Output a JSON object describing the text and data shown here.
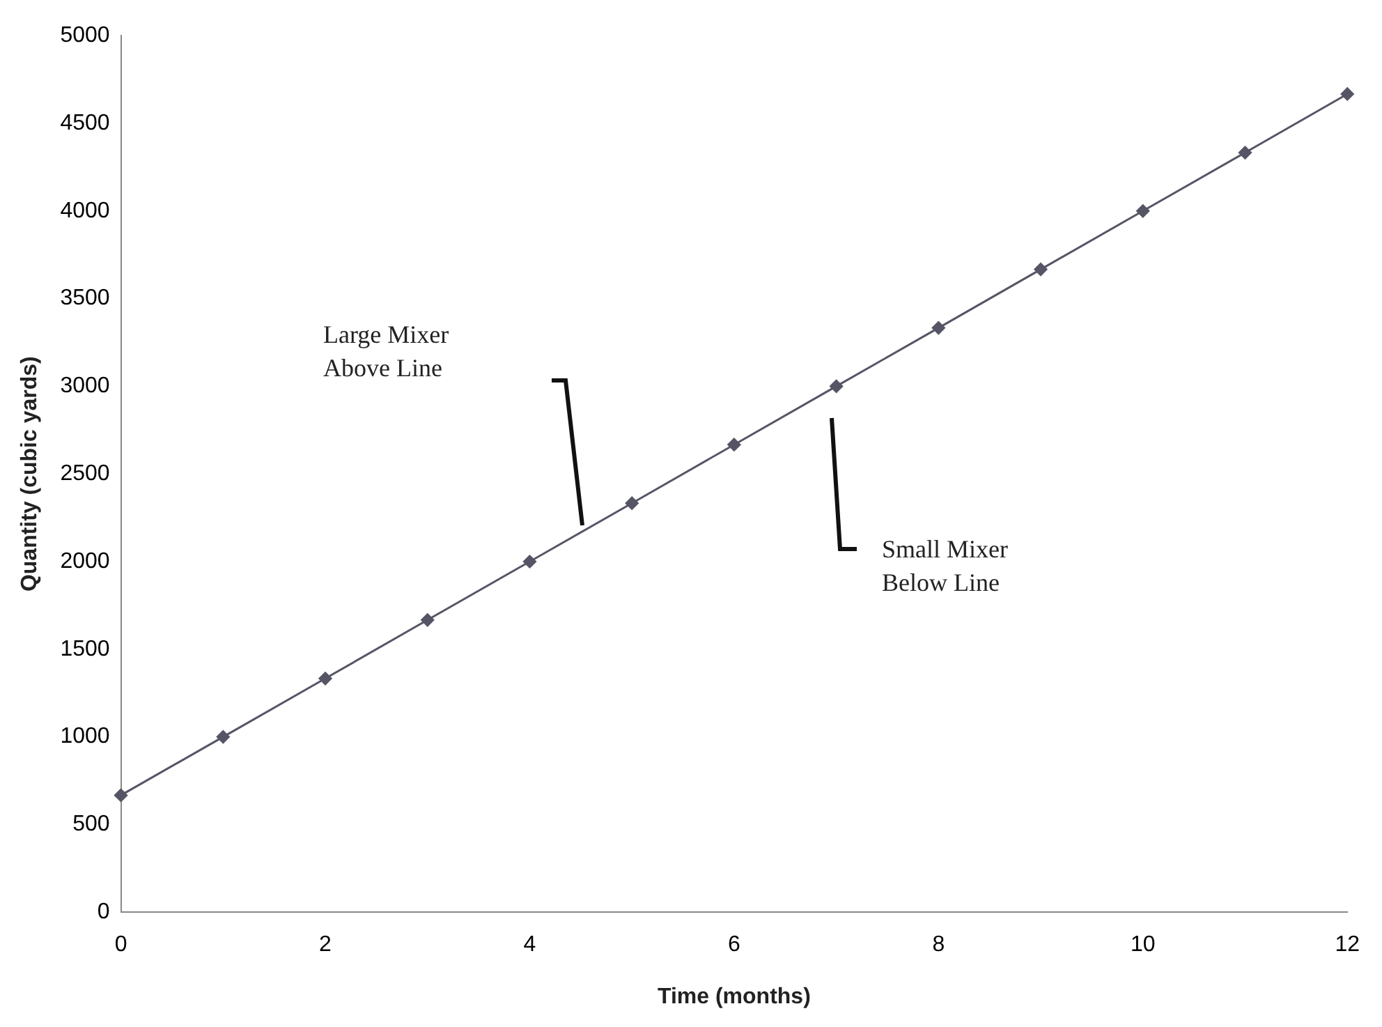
{
  "chart_data": {
    "type": "line",
    "xlabel": "Time (months)",
    "ylabel": "Quantity (cubic yards)",
    "x": [
      0,
      1,
      2,
      3,
      4,
      5,
      6,
      7,
      8,
      9,
      10,
      11,
      12
    ],
    "values": [
      667,
      1000,
      1333,
      1667,
      2000,
      2333,
      2667,
      3000,
      3333,
      3667,
      4000,
      4333,
      4667
    ],
    "color": "#555566",
    "marker": "diamond",
    "grid": false,
    "legend": false,
    "xlim": [
      0,
      12
    ],
    "xticks": [
      0,
      2,
      4,
      6,
      8,
      10,
      12
    ],
    "ylim": [
      0,
      5000
    ],
    "yticks": [
      0,
      500,
      1000,
      1500,
      2000,
      2500,
      3000,
      3500,
      4000,
      4500,
      5000
    ],
    "annotations": [
      "Large Mixer\nAbove Line",
      "Small Mixer\nBelow Line"
    ]
  }
}
